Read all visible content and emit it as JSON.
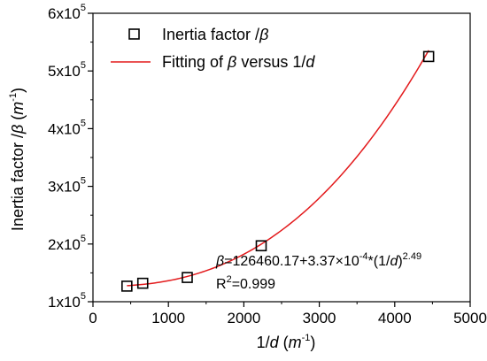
{
  "chart_data": {
    "type": "scatter",
    "xlabel": {
      "prefix": "1/",
      "var": "d",
      "open": " (",
      "unit": "m",
      "exp": "-1",
      "close": ")"
    },
    "ylabel": {
      "prefix": "Inertia factor /",
      "var": "β",
      "open": " (",
      "unit": "m",
      "exp": "-1",
      "close": ")"
    },
    "xlim": [
      0,
      5000
    ],
    "ylim": [
      100000,
      600000
    ],
    "x_ticks": [
      {
        "value": 0,
        "label": "0"
      },
      {
        "value": 1000,
        "label": "1000"
      },
      {
        "value": 2000,
        "label": "2000"
      },
      {
        "value": 3000,
        "label": "3000"
      },
      {
        "value": 4000,
        "label": "4000"
      },
      {
        "value": 5000,
        "label": "5000"
      }
    ],
    "y_ticks": [
      {
        "value": 100000,
        "mant": "1x10",
        "exp": "5"
      },
      {
        "value": 200000,
        "mant": "2x10",
        "exp": "5"
      },
      {
        "value": 300000,
        "mant": "3x10",
        "exp": "5"
      },
      {
        "value": 400000,
        "mant": "4x10",
        "exp": "5"
      },
      {
        "value": 500000,
        "mant": "5x10",
        "exp": "5"
      },
      {
        "value": 600000,
        "mant": "6x10",
        "exp": "5"
      }
    ],
    "series": [
      {
        "name": {
          "prefix": "Inertia factor /",
          "var": "β"
        },
        "marker": "open-square",
        "color": "#000000",
        "x": [
          450,
          660,
          1250,
          2230,
          4450
        ],
        "y": [
          127000,
          132000,
          142000,
          197000,
          525000
        ]
      }
    ],
    "fit": {
      "name": {
        "prefix": "Fitting of ",
        "var": "β",
        "mid": " versus 1/",
        "var2": "d"
      },
      "color": "#e31a1c",
      "a": 126460.17,
      "b": 0.000337,
      "c": 2.49,
      "x_range": [
        450,
        4450
      ]
    },
    "legend": "top-left",
    "annotation": {
      "eq_var": "β",
      "eq_main": "=126460.17+3.37×10",
      "eq_exp1": "-4",
      "eq_mid": "*(1/",
      "eq_var2": "d",
      "eq_close": ")",
      "eq_exp2": "2.49",
      "r2_base": "R",
      "r2_exp": "2",
      "r2_val": "=0.999"
    },
    "grid": false
  }
}
